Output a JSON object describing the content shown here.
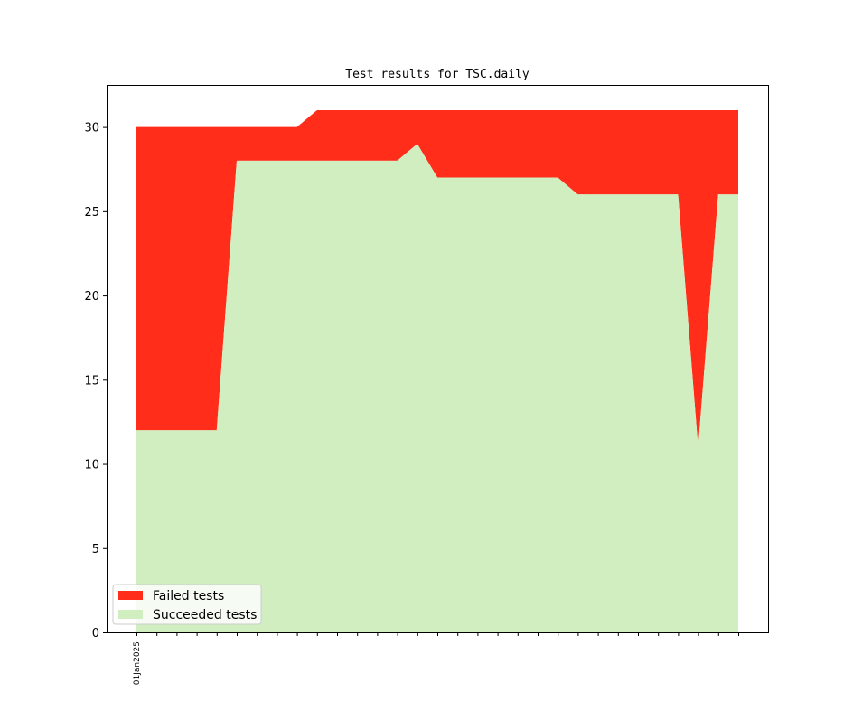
{
  "chart_data": {
    "type": "area",
    "stacked": true,
    "title": "Test results for TSC.daily",
    "xlabel": "",
    "ylabel": "",
    "x_tick_labels": [
      "01Jan2025"
    ],
    "x": [
      1,
      2,
      3,
      4,
      5,
      6,
      7,
      8,
      9,
      10,
      11,
      12,
      13,
      14,
      15,
      16,
      17,
      18,
      19,
      20,
      21,
      22,
      23,
      24,
      25,
      26,
      27,
      28,
      29,
      30,
      31
    ],
    "yticks": [
      0,
      5,
      10,
      15,
      20,
      25,
      30
    ],
    "ylim": [
      0,
      32.5
    ],
    "grid": false,
    "legend": "lower-left",
    "series": [
      {
        "name": "Succeeded tests",
        "color": "#d0eec0",
        "values": [
          12,
          12,
          12,
          12,
          12,
          28,
          28,
          28,
          28,
          28,
          28,
          28,
          28,
          28,
          29,
          27,
          27,
          27,
          27,
          27,
          27,
          27,
          26,
          26,
          26,
          26,
          26,
          26,
          11,
          26,
          26
        ]
      },
      {
        "name": "Failed tests",
        "color": "#ff2d1a",
        "values": [
          18,
          18,
          18,
          18,
          18,
          2,
          2,
          2,
          2,
          3,
          3,
          3,
          3,
          3,
          2,
          4,
          4,
          4,
          4,
          4,
          4,
          4,
          5,
          5,
          5,
          5,
          5,
          5,
          20,
          5,
          5
        ]
      }
    ]
  }
}
